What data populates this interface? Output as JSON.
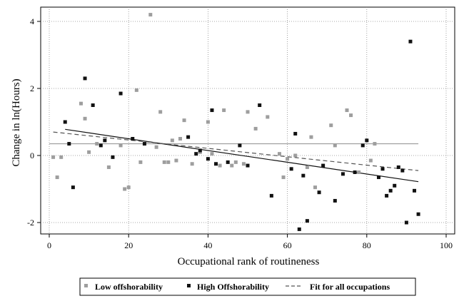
{
  "chart_data": {
    "type": "scatter",
    "xlabel": "Occupational rank of routineness",
    "ylabel": "Change in ln(Hours)",
    "xlim": [
      0,
      100
    ],
    "ylim": [
      -2.2,
      4.3
    ],
    "x_ticks": [
      0,
      20,
      40,
      60,
      80,
      100
    ],
    "y_ticks": [
      -2,
      0,
      2,
      4
    ],
    "grid": "dotted",
    "legend_position": "bottom",
    "series": [
      {
        "name": "Low offshorability",
        "color": "#9e9e9e",
        "marker": "square",
        "points": [
          [
            1,
            -0.05
          ],
          [
            2,
            -0.65
          ],
          [
            3,
            -0.05
          ],
          [
            8,
            1.55
          ],
          [
            9,
            1.1
          ],
          [
            10,
            0.1
          ],
          [
            12,
            0.35
          ],
          [
            15,
            -0.35
          ],
          [
            18,
            0.3
          ],
          [
            19,
            -1.0
          ],
          [
            20,
            -0.95
          ],
          [
            22,
            1.95
          ],
          [
            23,
            -0.2
          ],
          [
            25.5,
            4.2
          ],
          [
            27,
            0.25
          ],
          [
            28,
            1.3
          ],
          [
            29,
            -0.2
          ],
          [
            30,
            -0.2
          ],
          [
            31,
            0.45
          ],
          [
            32,
            -0.15
          ],
          [
            33,
            0.5
          ],
          [
            34,
            1.05
          ],
          [
            36,
            -0.25
          ],
          [
            38,
            0.1
          ],
          [
            40,
            1.0
          ],
          [
            41,
            0.05
          ],
          [
            43,
            -0.3
          ],
          [
            44,
            1.35
          ],
          [
            46,
            -0.3
          ],
          [
            47,
            -0.2
          ],
          [
            49,
            -0.25
          ],
          [
            50,
            1.3
          ],
          [
            52,
            0.8
          ],
          [
            55,
            1.15
          ],
          [
            58,
            0.05
          ],
          [
            59,
            -0.65
          ],
          [
            60,
            -0.1
          ],
          [
            62,
            0.0
          ],
          [
            65,
            -0.35
          ],
          [
            66,
            0.55
          ],
          [
            67,
            -0.95
          ],
          [
            71,
            0.9
          ],
          [
            72,
            0.3
          ],
          [
            75,
            1.35
          ],
          [
            76,
            1.2
          ],
          [
            78,
            -0.5
          ],
          [
            81,
            -0.15
          ],
          [
            82,
            0.35
          ]
        ]
      },
      {
        "name": "High Offshorability",
        "color": "#111111",
        "marker": "square",
        "points": [
          [
            4,
            1.0
          ],
          [
            5,
            0.35
          ],
          [
            6,
            -0.95
          ],
          [
            9,
            2.3
          ],
          [
            11,
            1.5
          ],
          [
            13,
            0.3
          ],
          [
            14,
            0.45
          ],
          [
            16,
            -0.05
          ],
          [
            18,
            1.85
          ],
          [
            21,
            0.5
          ],
          [
            24,
            0.35
          ],
          [
            35,
            0.55
          ],
          [
            37,
            0.05
          ],
          [
            38,
            0.15
          ],
          [
            40,
            -0.1
          ],
          [
            41,
            1.35
          ],
          [
            42,
            -0.25
          ],
          [
            45,
            -0.2
          ],
          [
            48,
            0.3
          ],
          [
            50,
            -0.3
          ],
          [
            53,
            1.5
          ],
          [
            56,
            -1.2
          ],
          [
            61,
            -0.4
          ],
          [
            62,
            0.65
          ],
          [
            63,
            -2.2
          ],
          [
            64,
            -0.6
          ],
          [
            65,
            -1.95
          ],
          [
            68,
            -1.1
          ],
          [
            69,
            -0.3
          ],
          [
            72,
            -1.35
          ],
          [
            74,
            -0.55
          ],
          [
            77,
            -0.5
          ],
          [
            79,
            0.3
          ],
          [
            80,
            0.45
          ],
          [
            83,
            -0.65
          ],
          [
            84,
            -0.4
          ],
          [
            85,
            -1.2
          ],
          [
            86,
            -1.05
          ],
          [
            87,
            -0.9
          ],
          [
            88,
            -0.35
          ],
          [
            89,
            -0.45
          ],
          [
            90,
            -2.0
          ],
          [
            91,
            3.4
          ],
          [
            92,
            -1.05
          ],
          [
            93,
            -1.75
          ]
        ]
      }
    ],
    "fit_lines": [
      {
        "name": "Low offshorability fit",
        "color": "#999999",
        "style": "solid",
        "x": [
          0,
          93
        ],
        "y": [
          0.35,
          0.35
        ]
      },
      {
        "name": "High Offshorability fit",
        "color": "#111111",
        "style": "solid",
        "x": [
          4,
          93
        ],
        "y": [
          0.78,
          -0.78
        ]
      },
      {
        "name": "Fit for all occupations",
        "color": "#555555",
        "style": "dashed",
        "x": [
          1,
          93
        ],
        "y": [
          0.7,
          -0.45
        ]
      }
    ],
    "legend": [
      {
        "label": "Low offshorability",
        "marker": "square",
        "color": "#9e9e9e"
      },
      {
        "label": "High Offshorability",
        "marker": "square",
        "color": "#111111"
      },
      {
        "label": "Fit for all occupations",
        "marker": "dashed-line",
        "color": "#555555"
      }
    ]
  }
}
